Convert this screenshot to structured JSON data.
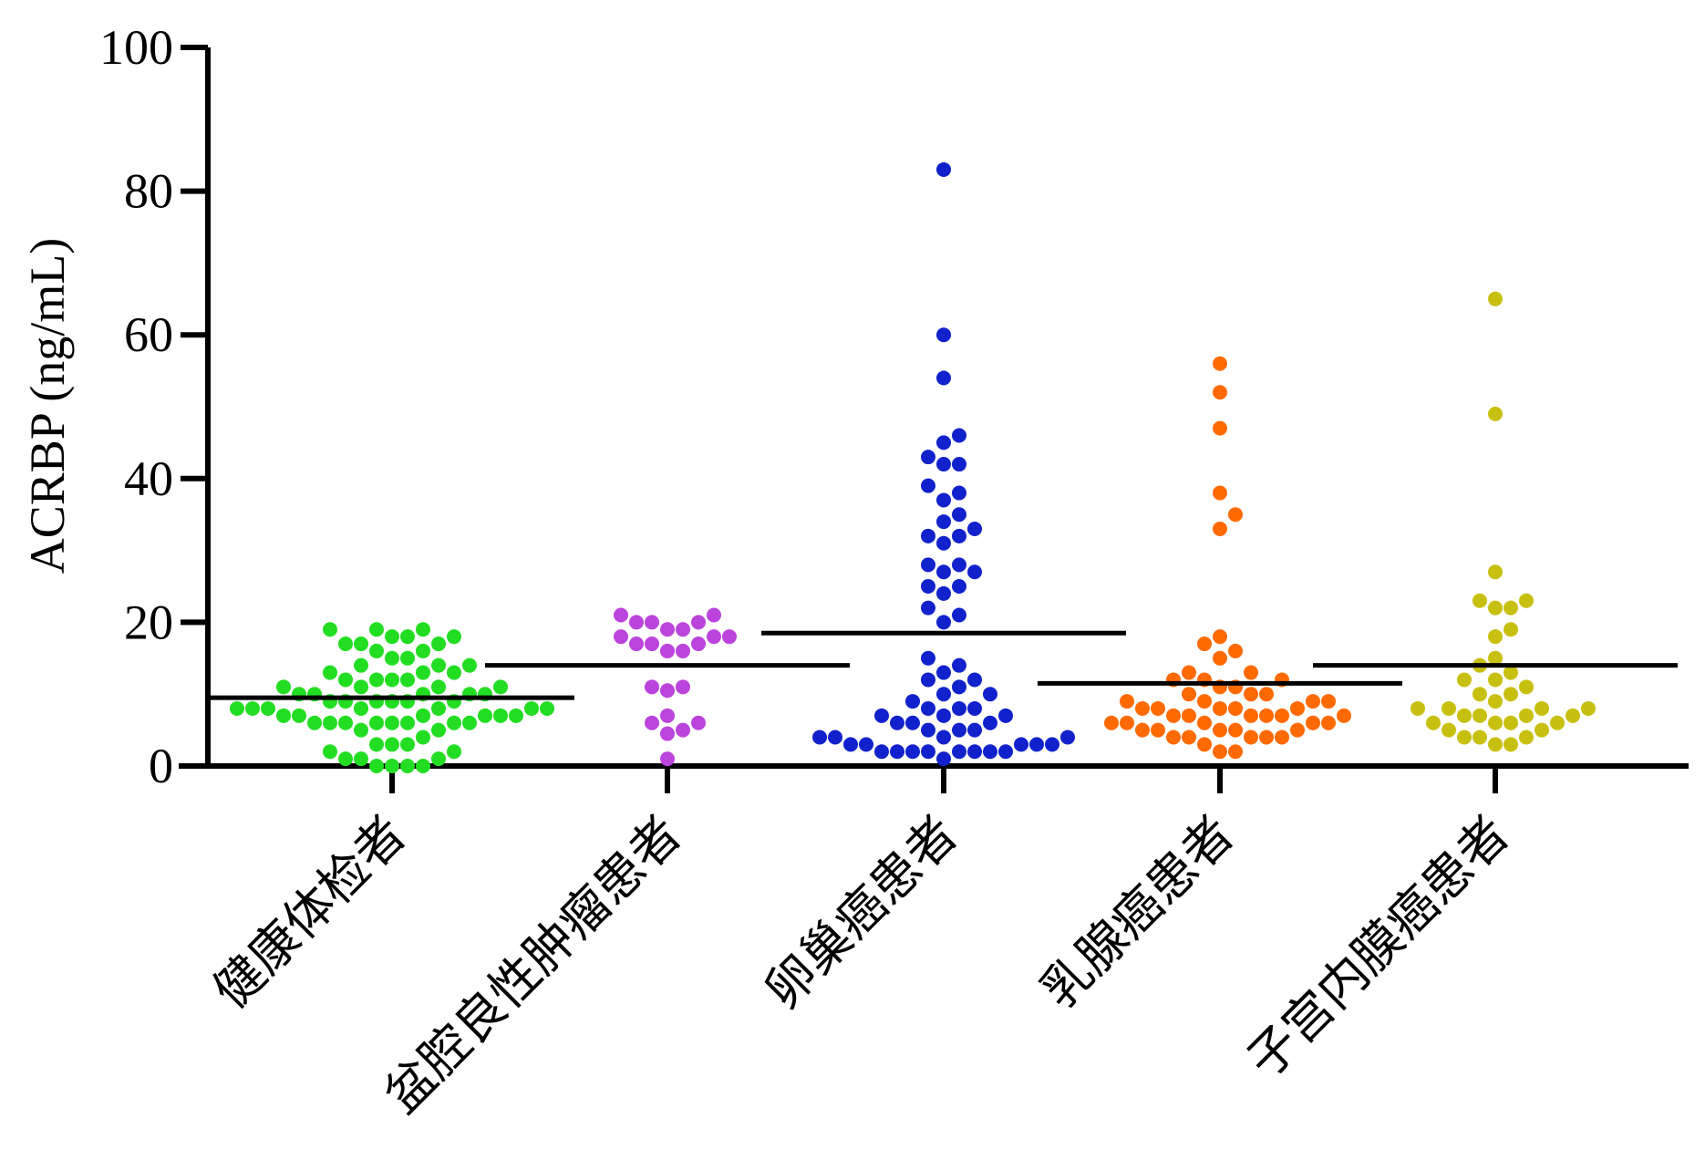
{
  "chart_data": {
    "type": "scatter",
    "subtype": "dot-plot-with-mean",
    "title": "",
    "xlabel": "",
    "ylabel": "ACRBP (ng/mL)",
    "ylim": [
      0,
      100
    ],
    "yticks": [
      0,
      20,
      40,
      60,
      80,
      100
    ],
    "grid": false,
    "legend": "none",
    "categories": [
      "健康体检者",
      "盆腔良性肿瘤患者",
      "卵巢癌患者",
      "乳腺癌患者",
      "子宫内膜癌患者"
    ],
    "series": [
      {
        "color": "#22dd22",
        "mean": 9.5,
        "values": [
          19,
          19,
          19,
          18,
          18,
          18,
          17,
          17,
          17,
          16,
          16,
          15,
          15,
          14,
          14,
          14,
          13,
          13,
          13,
          12,
          12,
          12,
          12,
          11,
          11,
          11,
          11,
          10,
          10,
          10,
          10,
          10,
          9,
          9,
          9,
          9,
          9,
          9,
          8,
          8,
          8,
          8,
          8,
          8,
          8,
          7,
          7,
          7,
          7,
          7,
          7,
          6,
          6,
          6,
          6,
          6,
          6,
          6,
          6,
          5,
          5,
          4,
          3,
          3,
          3,
          2,
          2,
          1,
          1,
          1,
          0,
          0,
          0,
          0
        ]
      },
      {
        "color": "#bb44dd",
        "mean": 14,
        "values": [
          21,
          21,
          20,
          20,
          20,
          19,
          19,
          18,
          18,
          18,
          17,
          17,
          17,
          16,
          16,
          11,
          11,
          10.5,
          7,
          6,
          6,
          5,
          4.5,
          1
        ]
      },
      {
        "color": "#1122cc",
        "mean": 18.5,
        "values": [
          83,
          60,
          54,
          46,
          45,
          43,
          42,
          42,
          39,
          38,
          37,
          35,
          34,
          33,
          32,
          32,
          31,
          28,
          28,
          27,
          27,
          25,
          25,
          24,
          22,
          21,
          20,
          15,
          14,
          13,
          12,
          12,
          11,
          10,
          10,
          9,
          8,
          8,
          8,
          7,
          7,
          7,
          6,
          6,
          6,
          5,
          5,
          5,
          4,
          4,
          4,
          4,
          3,
          3,
          3,
          3,
          3,
          2,
          2,
          2,
          2,
          2,
          2,
          2,
          2,
          1
        ]
      },
      {
        "color": "#ff6a00",
        "mean": 11.5,
        "values": [
          56,
          52,
          47,
          38,
          35,
          33,
          18,
          17,
          16,
          15,
          13,
          13,
          12,
          12,
          12,
          11,
          11,
          10,
          10,
          10,
          9,
          9,
          9,
          9,
          8,
          8,
          8,
          8,
          8,
          7,
          7,
          7,
          7,
          7,
          7,
          6,
          6,
          6,
          6,
          6,
          5,
          5,
          5,
          5,
          5,
          4,
          4,
          4,
          4,
          4,
          3,
          2,
          2
        ]
      },
      {
        "color": "#c8c010",
        "mean": 14,
        "values": [
          65,
          49,
          27,
          23,
          23,
          22,
          22,
          19,
          18,
          15,
          14,
          13,
          12,
          12,
          11,
          10,
          10,
          9,
          8,
          8,
          8,
          8,
          7,
          7,
          7,
          7,
          6,
          6,
          6,
          6,
          5,
          5,
          4,
          4,
          4,
          3,
          3
        ]
      }
    ]
  }
}
